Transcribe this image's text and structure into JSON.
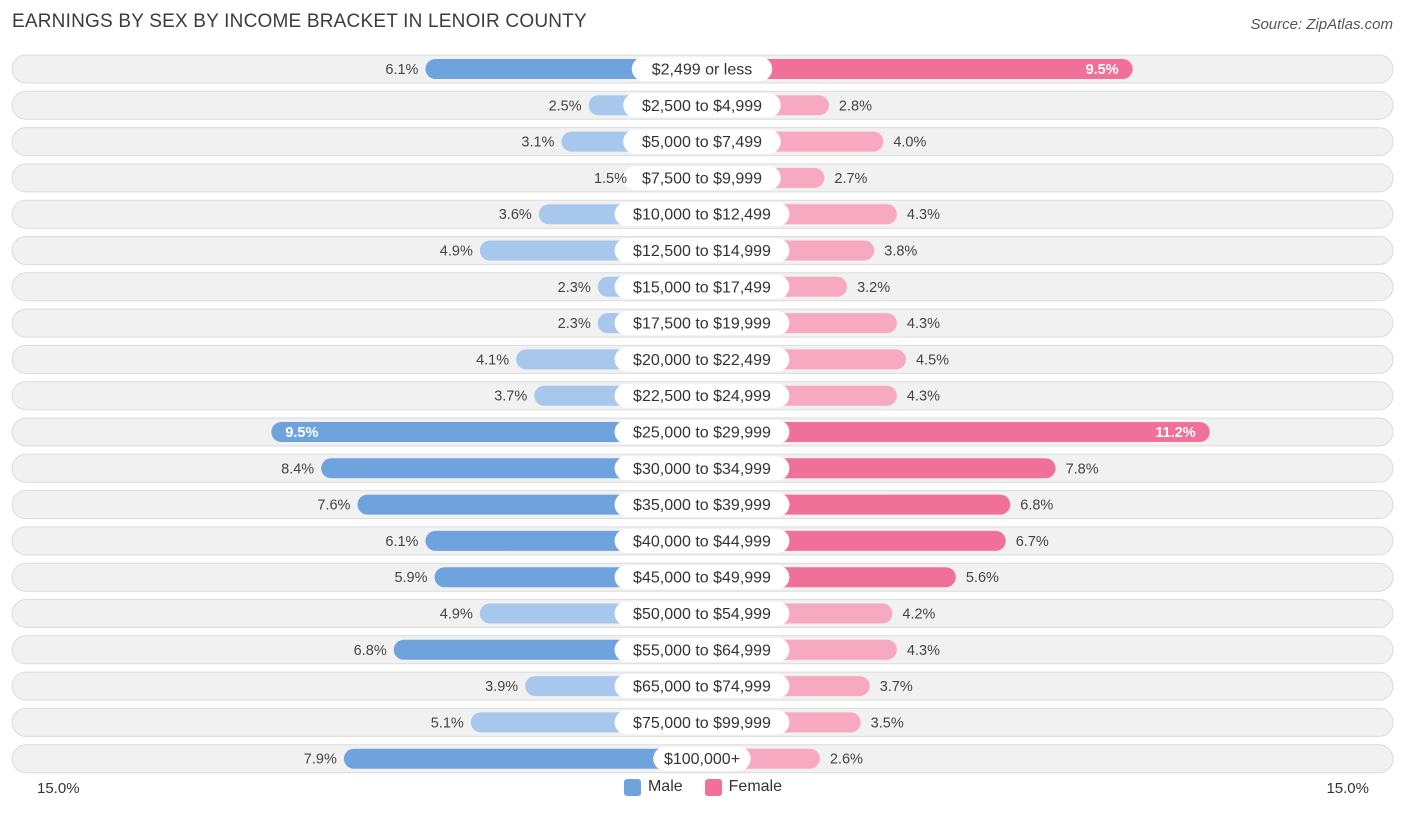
{
  "title": "EARNINGS BY SEX BY INCOME BRACKET IN LENOIR COUNTY",
  "source": "Source: ZipAtlas.com",
  "colors": {
    "male": "#6fa3de",
    "male_light": "#a7c7ec",
    "female": "#f07099",
    "female_light": "#f6a9c1",
    "row_bg": "#f1f1f1",
    "row_border": "#dcdcdc"
  },
  "legend": {
    "male": "Male",
    "female": "Female"
  },
  "axis": {
    "left_label": "15.0%",
    "right_label": "15.0%"
  },
  "chart_data": {
    "type": "bar",
    "orientation": "diverging-horizontal",
    "title": "EARNINGS BY SEX BY INCOME BRACKET IN LENOIR COUNTY",
    "xlim": [
      -15.0,
      15.0
    ],
    "unit": "%",
    "categories": [
      "$2,499 or less",
      "$2,500 to $4,999",
      "$5,000 to $7,499",
      "$7,500 to $9,999",
      "$10,000 to $12,499",
      "$12,500 to $14,999",
      "$15,000 to $17,499",
      "$17,500 to $19,999",
      "$20,000 to $22,499",
      "$22,500 to $24,999",
      "$25,000 to $29,999",
      "$30,000 to $34,999",
      "$35,000 to $39,999",
      "$40,000 to $44,999",
      "$45,000 to $49,999",
      "$50,000 to $54,999",
      "$55,000 to $64,999",
      "$65,000 to $74,999",
      "$75,000 to $99,999",
      "$100,000+"
    ],
    "series": [
      {
        "name": "Male",
        "values": [
          6.1,
          2.5,
          3.1,
          1.5,
          3.6,
          4.9,
          2.3,
          2.3,
          4.1,
          3.7,
          9.5,
          8.4,
          7.6,
          6.1,
          5.9,
          4.9,
          6.8,
          3.9,
          5.1,
          7.9
        ],
        "labels": [
          "6.1%",
          "2.5%",
          "3.1%",
          "1.5%",
          "3.6%",
          "4.9%",
          "2.3%",
          "2.3%",
          "4.1%",
          "3.7%",
          "9.5%",
          "8.4%",
          "7.6%",
          "6.1%",
          "5.9%",
          "4.9%",
          "6.8%",
          "3.9%",
          "5.1%",
          "7.9%"
        ]
      },
      {
        "name": "Female",
        "values": [
          9.5,
          2.8,
          4.0,
          2.7,
          4.3,
          3.8,
          3.2,
          4.3,
          4.5,
          4.3,
          11.2,
          7.8,
          6.8,
          6.7,
          5.6,
          4.2,
          4.3,
          3.7,
          3.5,
          2.6
        ],
        "labels": [
          "9.5%",
          "2.8%",
          "4.0%",
          "2.7%",
          "4.3%",
          "3.8%",
          "3.2%",
          "4.3%",
          "4.5%",
          "4.3%",
          "11.2%",
          "7.8%",
          "6.8%",
          "6.7%",
          "5.6%",
          "4.2%",
          "4.3%",
          "3.7%",
          "3.5%",
          "2.6%"
        ]
      }
    ]
  }
}
